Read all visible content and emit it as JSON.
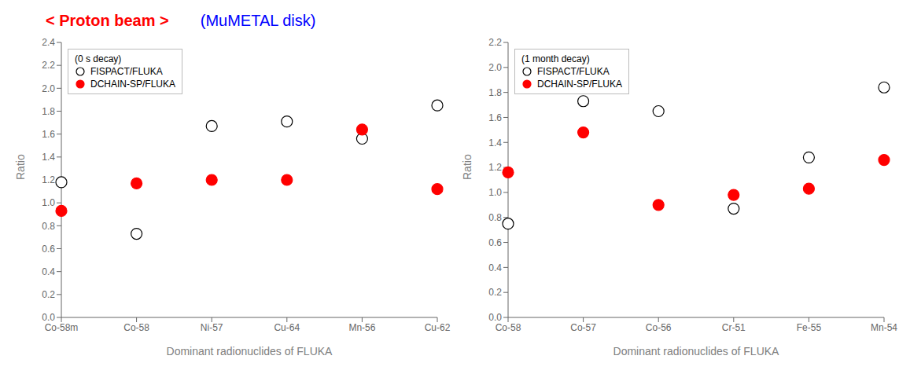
{
  "chart_data": [
    {
      "type": "scatter",
      "title": "< Proton beam >",
      "subtitle": "(MuMETAL disk)",
      "legend_title": "(0 s decay)",
      "categories": [
        "Co-58m",
        "Co-58",
        "Ni-57",
        "Cu-64",
        "Mn-56",
        "Cu-62"
      ],
      "series": [
        {
          "name": "FISPACT/FLUKA",
          "color": "black",
          "marker": "open_circle",
          "values": [
            1.18,
            0.73,
            1.67,
            1.71,
            1.56,
            1.85
          ]
        },
        {
          "name": "DCHAIN-SP/FLUKA",
          "color": "red",
          "marker": "circle",
          "values": [
            0.93,
            1.17,
            1.2,
            1.2,
            1.64,
            1.12
          ]
        }
      ],
      "xlabel": "Dominant radionuclides of FLUKA",
      "ylabel": "Ratio",
      "ylim": [
        0.0,
        2.4
      ],
      "yticks": [
        {
          "value": 0.0,
          "label": "0.0"
        },
        0.2,
        0.4,
        0.6,
        0.8,
        {
          "value": 1.0,
          "label": "1.0"
        },
        1.2,
        1.4,
        1.6,
        1.8,
        {
          "value": 2.0,
          "label": "2.0"
        },
        2.2,
        2.4
      ],
      "legend": "upper left",
      "grid": false
    },
    {
      "type": "scatter",
      "legend_title": "(1 month decay)",
      "categories": [
        "Co-58",
        "Co-57",
        "Co-56",
        "Cr-51",
        "Fe-55",
        "Mn-54"
      ],
      "series": [
        {
          "name": "FISPACT/FLUKA",
          "color": "black",
          "marker": "open_circle",
          "values": [
            0.75,
            1.73,
            1.65,
            0.87,
            1.28,
            1.84
          ]
        },
        {
          "name": "DCHAIN-SP/FLUKA",
          "color": "red",
          "marker": "circle",
          "values": [
            1.16,
            1.48,
            0.9,
            0.98,
            1.03,
            1.26
          ]
        }
      ],
      "xlabel": "Dominant radionuclides of FLUKA",
      "ylabel": "Ratio",
      "ylim": [
        0.0,
        2.2
      ],
      "yticks": [
        {
          "value": 0.0,
          "label": "0.0"
        },
        0.2,
        0.4,
        0.6,
        0.8,
        {
          "value": 1.0,
          "label": "1.0"
        },
        1.2,
        1.4,
        1.6,
        1.8,
        {
          "value": 2.0,
          "label": "2.0"
        },
        2.2
      ],
      "legend": "upper left",
      "grid": false
    }
  ]
}
